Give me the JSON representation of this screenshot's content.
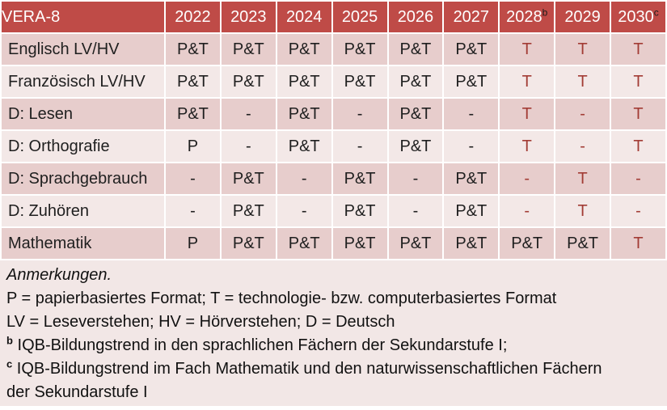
{
  "table": {
    "corner_label": "VERA-8",
    "years": [
      {
        "label": "2022",
        "sup": ""
      },
      {
        "label": "2023",
        "sup": ""
      },
      {
        "label": "2024",
        "sup": ""
      },
      {
        "label": "2025",
        "sup": ""
      },
      {
        "label": "2026",
        "sup": ""
      },
      {
        "label": "2027",
        "sup": ""
      },
      {
        "label": "2028",
        "sup": "b"
      },
      {
        "label": "2029",
        "sup": ""
      },
      {
        "label": "2030",
        "sup": "c"
      }
    ],
    "rows": [
      {
        "label": "Englisch LV/HV",
        "cells": [
          {
            "t": "P&T",
            "red": false
          },
          {
            "t": "P&T",
            "red": false
          },
          {
            "t": "P&T",
            "red": false
          },
          {
            "t": "P&T",
            "red": false
          },
          {
            "t": "P&T",
            "red": false
          },
          {
            "t": "P&T",
            "red": false
          },
          {
            "t": "T",
            "red": true
          },
          {
            "t": "T",
            "red": true
          },
          {
            "t": "T",
            "red": true
          }
        ]
      },
      {
        "label": "Französisch LV/HV",
        "cells": [
          {
            "t": "P&T",
            "red": false
          },
          {
            "t": "P&T",
            "red": false
          },
          {
            "t": "P&T",
            "red": false
          },
          {
            "t": "P&T",
            "red": false
          },
          {
            "t": "P&T",
            "red": false
          },
          {
            "t": "P&T",
            "red": false
          },
          {
            "t": "T",
            "red": true
          },
          {
            "t": "T",
            "red": true
          },
          {
            "t": "T",
            "red": true
          }
        ]
      },
      {
        "label": "D: Lesen",
        "cells": [
          {
            "t": "P&T",
            "red": false
          },
          {
            "t": "-",
            "red": false
          },
          {
            "t": "P&T",
            "red": false
          },
          {
            "t": "-",
            "red": false
          },
          {
            "t": "P&T",
            "red": false
          },
          {
            "t": "-",
            "red": false
          },
          {
            "t": "T",
            "red": true
          },
          {
            "t": "-",
            "red": true
          },
          {
            "t": "T",
            "red": true
          }
        ]
      },
      {
        "label": "D: Orthografie",
        "cells": [
          {
            "t": "P",
            "red": false
          },
          {
            "t": "-",
            "red": false
          },
          {
            "t": "P&T",
            "red": false
          },
          {
            "t": "-",
            "red": false
          },
          {
            "t": "P&T",
            "red": false
          },
          {
            "t": "-",
            "red": false
          },
          {
            "t": "T",
            "red": true
          },
          {
            "t": "-",
            "red": true
          },
          {
            "t": "T",
            "red": true
          }
        ]
      },
      {
        "label": "D: Sprachgebrauch",
        "cells": [
          {
            "t": "-",
            "red": false
          },
          {
            "t": "P&T",
            "red": false
          },
          {
            "t": "-",
            "red": false
          },
          {
            "t": "P&T",
            "red": false
          },
          {
            "t": "-",
            "red": false
          },
          {
            "t": "P&T",
            "red": false
          },
          {
            "t": "-",
            "red": true
          },
          {
            "t": "T",
            "red": true
          },
          {
            "t": "-",
            "red": true
          }
        ]
      },
      {
        "label": "D: Zuhören",
        "cells": [
          {
            "t": "-",
            "red": false
          },
          {
            "t": "P&T",
            "red": false
          },
          {
            "t": "-",
            "red": false
          },
          {
            "t": "P&T",
            "red": false
          },
          {
            "t": "-",
            "red": false
          },
          {
            "t": "P&T",
            "red": false
          },
          {
            "t": "-",
            "red": true
          },
          {
            "t": "T",
            "red": true
          },
          {
            "t": "-",
            "red": true
          }
        ]
      },
      {
        "label": "Mathematik",
        "cells": [
          {
            "t": "P",
            "red": false
          },
          {
            "t": "P&T",
            "red": false
          },
          {
            "t": "P&T",
            "red": false
          },
          {
            "t": "P&T",
            "red": false
          },
          {
            "t": "P&T",
            "red": false
          },
          {
            "t": "P&T",
            "red": false
          },
          {
            "t": "P&T",
            "red": false
          },
          {
            "t": "P&T",
            "red": false
          },
          {
            "t": "T",
            "red": true
          }
        ]
      }
    ]
  },
  "notes": {
    "title": "Anmerkungen.",
    "line_formats": "P = papierbasiertes Format; T = technologie- bzw. computerbasiertes Format",
    "line_abbrev": "LV = Leseverstehen; HV = Hörverstehen; D = Deutsch",
    "note_b": {
      "sup": "b",
      "text": " IQB-Bildungstrend in den sprachlichen Fächern der Sekundarstufe I;"
    },
    "note_c": {
      "sup": "c",
      "text": " IQB-Bildungstrend im Fach Mathematik und den naturwissenschaftlichen Fächern der Sekundarstufe I"
    }
  },
  "colors": {
    "header_bg": "#BF4B47",
    "band_dark": "#E7CDCC",
    "band_light": "#F3E8E7",
    "notes_bg": "#F2E7E6",
    "red_text": "#A23C35",
    "body_text": "#1F1F1F",
    "header_text": "#FFFFFF"
  }
}
